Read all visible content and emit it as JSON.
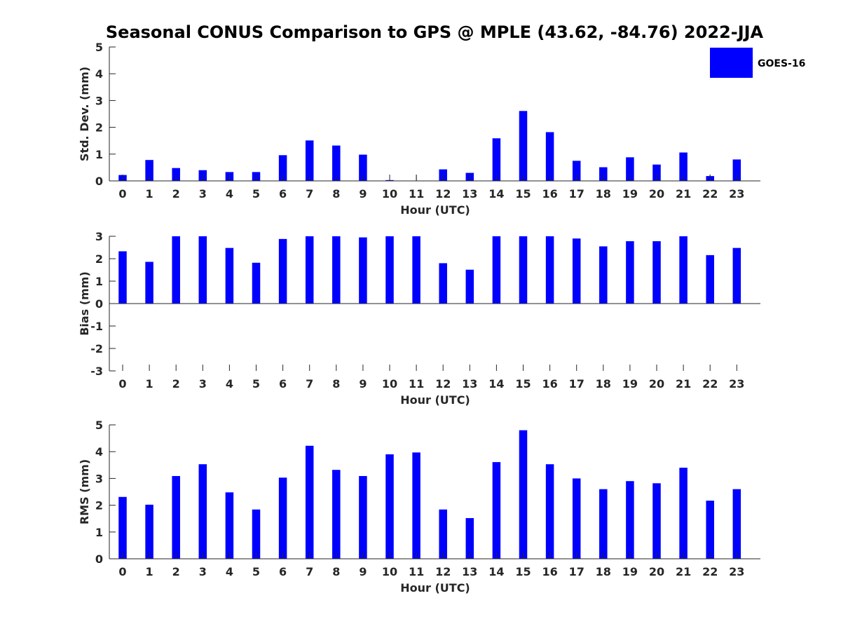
{
  "figure": {
    "title": "Seasonal CONUS Comparison to GPS @ MPLE (43.62, -84.76) 2022-JJA",
    "legend": {
      "label": "GOES-16",
      "placement": "top-right"
    },
    "bar_color": "#0000ff"
  },
  "chart_data": [
    {
      "type": "bar",
      "series": [
        {
          "name": "GOES-16",
          "values": [
            0.22,
            0.78,
            0.48,
            0.4,
            0.33,
            0.33,
            0.96,
            1.51,
            1.32,
            0.98,
            0.03,
            0,
            0.43,
            0.3,
            1.59,
            2.61,
            1.82,
            0.75,
            0.51,
            0.88,
            0.61,
            1.06,
            0.18,
            0.8
          ]
        }
      ],
      "categories": [
        "0",
        "1",
        "2",
        "3",
        "4",
        "5",
        "6",
        "7",
        "8",
        "9",
        "10",
        "11",
        "12",
        "13",
        "14",
        "15",
        "16",
        "17",
        "18",
        "19",
        "20",
        "21",
        "22",
        "23"
      ],
      "error_bars": [
        {
          "hour": 10,
          "low": 0,
          "high": 0.22
        },
        {
          "hour": 11,
          "low": 0,
          "high": 0.22
        },
        {
          "hour": 22,
          "low": 0.14,
          "high": 0.22
        }
      ],
      "xlabel": "Hour (UTC)",
      "ylabel": "Std. Dev. (mm)",
      "ylim": [
        0,
        5
      ],
      "yticks": [
        "0",
        "1",
        "2",
        "3",
        "4",
        "5"
      ],
      "grid": false
    },
    {
      "type": "bar",
      "series": [
        {
          "name": "GOES-16",
          "values": [
            2.33,
            1.86,
            3.0,
            3.0,
            2.48,
            1.82,
            2.88,
            3.0,
            3.0,
            2.95,
            3.0,
            3.0,
            1.8,
            1.51,
            3.0,
            3.0,
            3.0,
            2.9,
            2.55,
            2.78,
            2.78,
            3.0,
            2.16,
            2.48
          ]
        }
      ],
      "categories": [
        "0",
        "1",
        "2",
        "3",
        "4",
        "5",
        "6",
        "7",
        "8",
        "9",
        "10",
        "11",
        "12",
        "13",
        "14",
        "15",
        "16",
        "17",
        "18",
        "19",
        "20",
        "21",
        "22",
        "23"
      ],
      "xlabel": "Hour (UTC)",
      "ylabel": "Bias (mm)",
      "ylim": [
        -3,
        3
      ],
      "yticks": [
        "-3",
        "-2",
        "-1",
        "0",
        "1",
        "2",
        "3"
      ],
      "grid": false
    },
    {
      "type": "bar",
      "series": [
        {
          "name": "GOES-16",
          "values": [
            2.31,
            2.02,
            3.09,
            3.53,
            2.48,
            1.84,
            3.03,
            4.22,
            3.32,
            3.09,
            3.9,
            3.97,
            1.84,
            1.52,
            3.61,
            4.8,
            3.53,
            3.0,
            2.6,
            2.9,
            2.82,
            3.4,
            2.17,
            2.6
          ]
        }
      ],
      "categories": [
        "0",
        "1",
        "2",
        "3",
        "4",
        "5",
        "6",
        "7",
        "8",
        "9",
        "10",
        "11",
        "12",
        "13",
        "14",
        "15",
        "16",
        "17",
        "18",
        "19",
        "20",
        "21",
        "22",
        "23"
      ],
      "xlabel": "Hour (UTC)",
      "ylabel": "RMS (mm)",
      "ylim": [
        0,
        5
      ],
      "yticks": [
        "0",
        "1",
        "2",
        "3",
        "4",
        "5"
      ],
      "grid": false
    }
  ]
}
